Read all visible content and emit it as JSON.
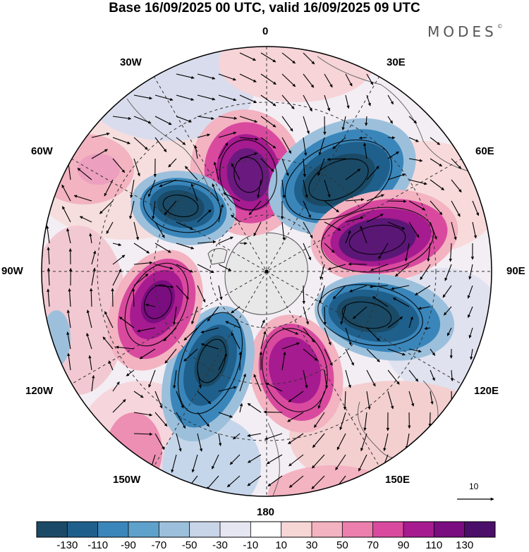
{
  "title": "Base 16/09/2025 00 UTC, valid 16/09/2025 09 UTC",
  "brand": {
    "name": "MODES",
    "mark": "©"
  },
  "longitude_labels": {
    "lon_0": "0",
    "lon_30e": "30E",
    "lon_60e": "60E",
    "lon_90e": "90E",
    "lon_120e": "120E",
    "lon_150e": "150E",
    "lon_180": "180",
    "lon_150w": "150W",
    "lon_120w": "120W",
    "lon_90w": "90W",
    "lon_60w": "60W",
    "lon_30w": "30W"
  },
  "reference_vector": {
    "label": "10"
  },
  "colorbar": {
    "tick_labels": [
      "-130",
      "-110",
      "-90",
      "-70",
      "-50",
      "-30",
      "-10",
      "10",
      "30",
      "50",
      "70",
      "90",
      "110",
      "130"
    ],
    "colors": [
      "#1a4a66",
      "#1f5f8b",
      "#3a86ba",
      "#5ea2cc",
      "#9cc0dc",
      "#c8d4e8",
      "#e6e6f3",
      "#ffffff",
      "#f7d6d6",
      "#f3b3c1",
      "#ec7fae",
      "#d94a9f",
      "#a61b8f",
      "#7a0d80",
      "#4b0f6a"
    ]
  },
  "map_colors": {
    "land": "#e8e8e8",
    "coast": "#555555",
    "grid": "#333333",
    "positive_strong": "#6a1a7e",
    "negative_strong": "#1a4a66"
  }
}
